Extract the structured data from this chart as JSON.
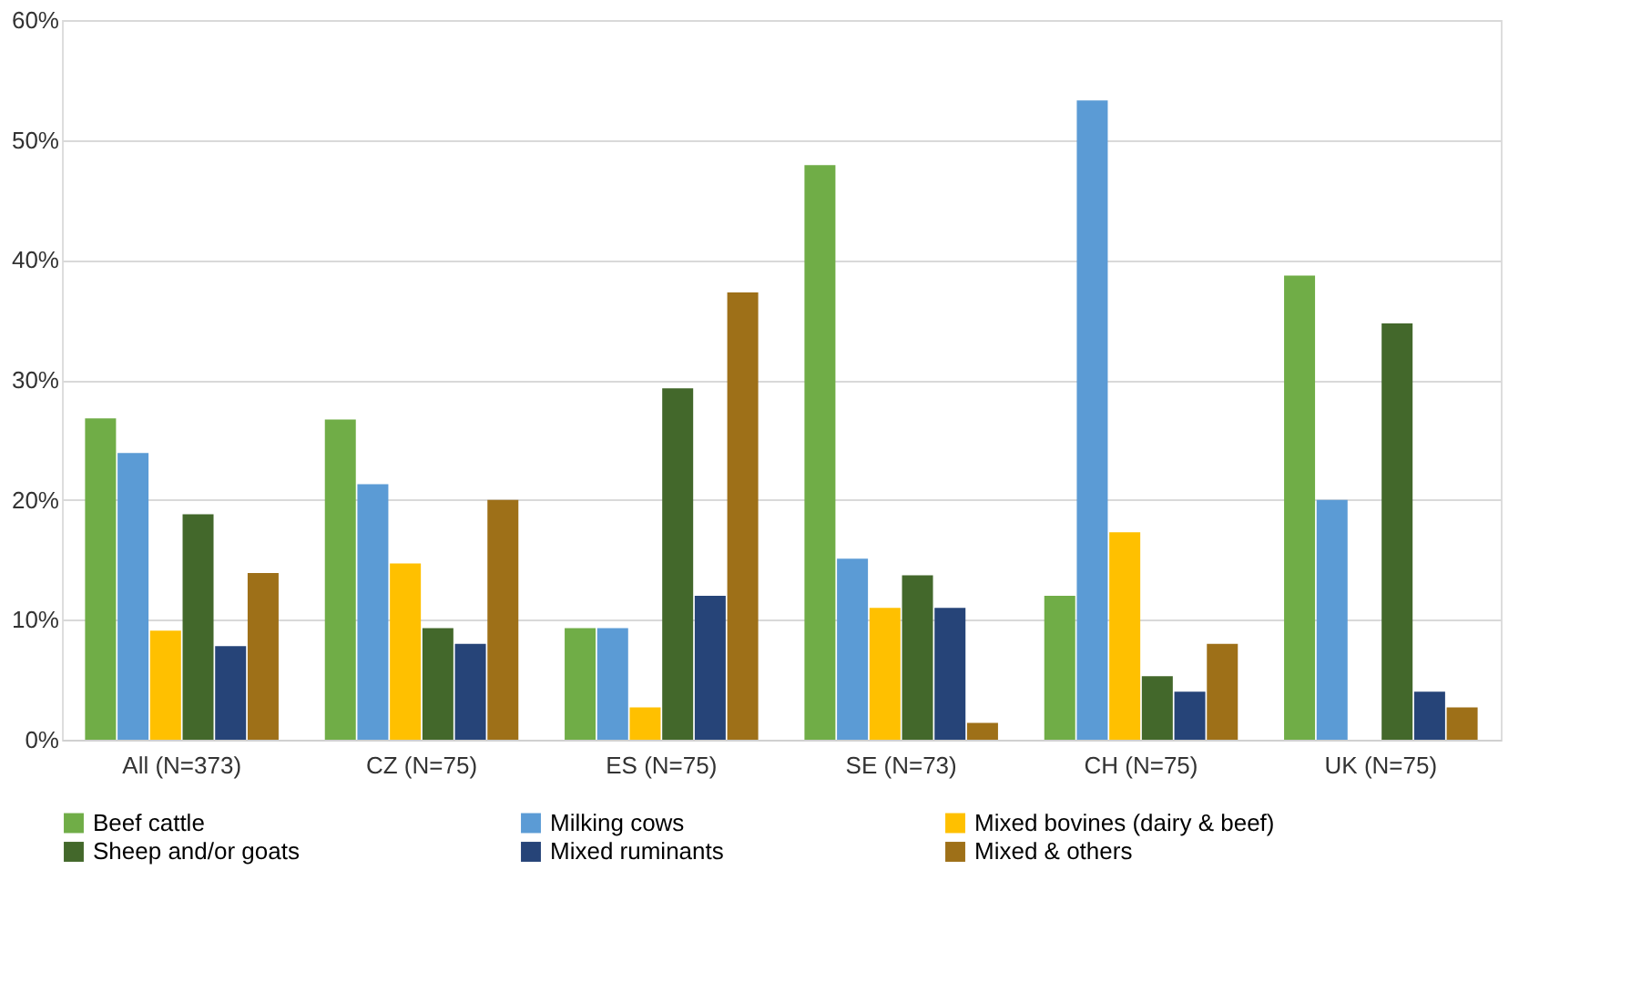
{
  "chart_data": {
    "type": "bar",
    "categories": [
      "All (N=373)",
      "CZ (N=75)",
      "ES (N=75)",
      "SE (N=73)",
      "CH (N=75)",
      "UK (N=75)"
    ],
    "series": [
      {
        "name": "Beef cattle",
        "color": "#70ad47",
        "values": [
          26.8,
          26.7,
          9.3,
          47.9,
          12.0,
          38.7
        ]
      },
      {
        "name": "Milking cows",
        "color": "#5b9bd5",
        "values": [
          23.9,
          21.3,
          9.3,
          15.1,
          53.3,
          20.0
        ]
      },
      {
        "name": "Mixed bovines (dairy & beef)",
        "color": "#ffc000",
        "values": [
          9.1,
          14.7,
          2.7,
          11.0,
          17.3,
          0
        ]
      },
      {
        "name": "Sheep and/or goats",
        "color": "#43682b",
        "values": [
          18.8,
          9.3,
          29.3,
          13.7,
          5.3,
          34.7
        ]
      },
      {
        "name": "Mixed ruminants",
        "color": "#264478",
        "values": [
          7.8,
          8.0,
          12.0,
          11.0,
          4.0,
          4.0
        ]
      },
      {
        "name": "Mixed & others",
        "color": "#9e7018",
        "values": [
          13.9,
          20.0,
          37.3,
          1.4,
          8.0,
          2.7
        ]
      }
    ],
    "ylim": [
      0,
      60
    ],
    "yticks": [
      {
        "value": 0,
        "label": "0%"
      },
      {
        "value": 10,
        "label": "10%"
      },
      {
        "value": 20,
        "label": "20%"
      },
      {
        "value": 30,
        "label": "30%"
      },
      {
        "value": 40,
        "label": "40%"
      },
      {
        "value": 50,
        "label": "50%"
      },
      {
        "value": 60,
        "label": "60%"
      }
    ],
    "grid": "y",
    "legend": "bottom"
  }
}
